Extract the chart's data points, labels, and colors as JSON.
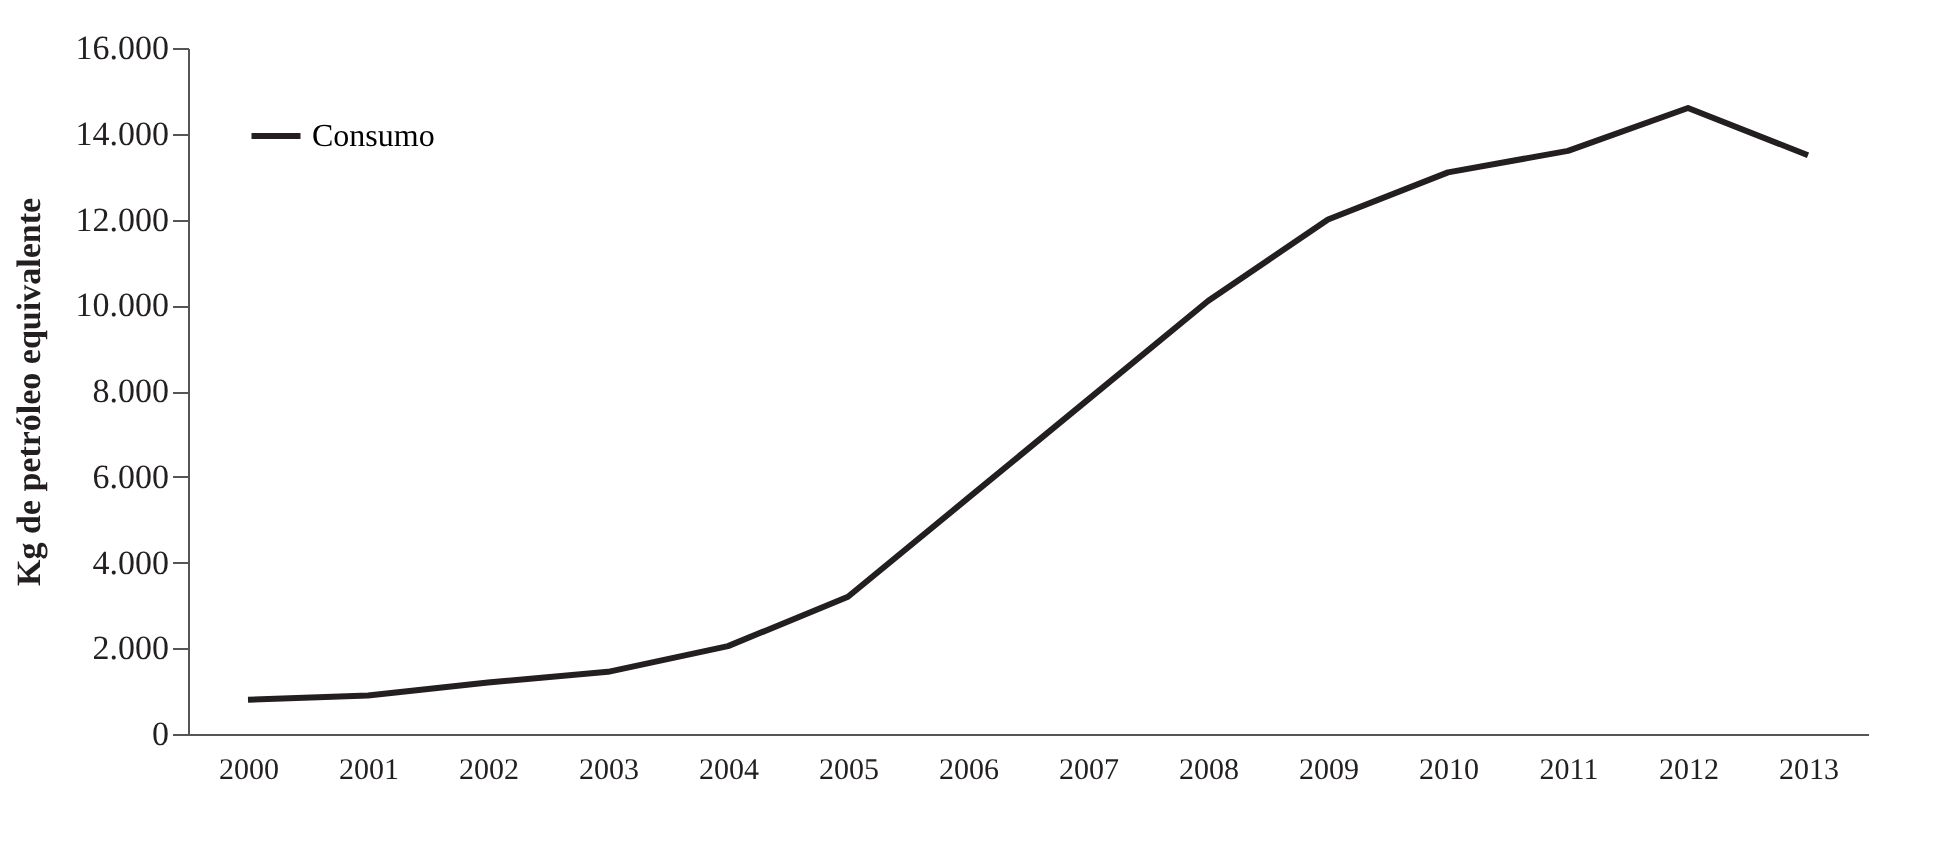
{
  "chart_data": {
    "type": "line",
    "ylabel": "Kg de petróleo equivalente",
    "categories": [
      "2000",
      "2001",
      "2002",
      "2003",
      "2004",
      "2005",
      "2006",
      "2007",
      "2008",
      "2009",
      "2010",
      "2011",
      "2012",
      "2013"
    ],
    "series": [
      {
        "name": "Consumo",
        "color": "#231f20",
        "values": [
          800,
          900,
          1200,
          1450,
          2050,
          3200,
          5500,
          7800,
          10100,
          12000,
          13100,
          13600,
          14600,
          13500
        ]
      }
    ],
    "ylim": [
      0,
      16000
    ],
    "yticks": [
      0,
      {
        "value": 2000,
        "label": "2.000"
      },
      {
        "value": 4000,
        "label": "4.000"
      },
      {
        "value": 6000,
        "label": "6.000"
      },
      {
        "value": 8000,
        "label": "8.000"
      },
      {
        "value": 10000,
        "label": "10.000"
      },
      {
        "value": 12000,
        "label": "12.000"
      },
      {
        "value": 14000,
        "label": "14.000"
      },
      {
        "value": 16000,
        "label": "16.000"
      }
    ],
    "legend": "top left",
    "grid": false,
    "marker": "none",
    "line_style": "solid"
  }
}
